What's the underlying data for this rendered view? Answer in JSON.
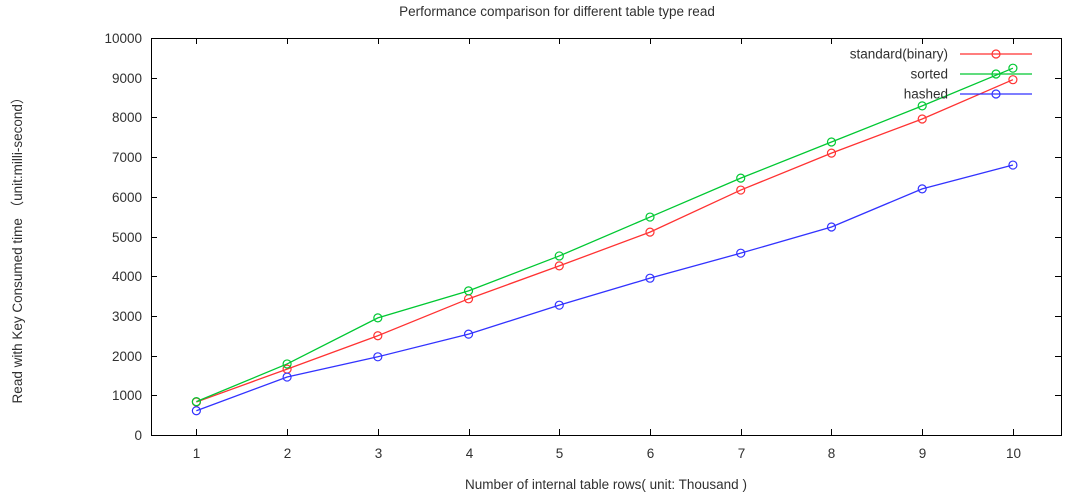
{
  "figure": {
    "background": "#ffffff",
    "text_color": "#303030",
    "axis_color": "#000000"
  },
  "chart_data": {
    "type": "line",
    "title": "Performance comparison for different table type read",
    "xlabel": "Number of internal table rows( unit: Thousand )",
    "ylabel": "Read with Key Consumed time （unit:milli-second）",
    "x": [
      1,
      2,
      3,
      4,
      5,
      6,
      7,
      8,
      9,
      10
    ],
    "xticks": [
      1,
      2,
      3,
      4,
      5,
      6,
      7,
      8,
      9,
      10
    ],
    "yticks": [
      0,
      1000,
      2000,
      3000,
      4000,
      5000,
      6000,
      7000,
      8000,
      9000,
      10000
    ],
    "xlim": [
      0.5,
      10.53
    ],
    "ylim": [
      0,
      10000
    ],
    "grid": false,
    "marker": "open-circle",
    "legend_position": "top-right-inside",
    "series": [
      {
        "name": "standard(binary)",
        "color": "#ff3232",
        "values": [
          830,
          1660,
          2500,
          3430,
          4260,
          5110,
          6170,
          7100,
          7960,
          8950
        ]
      },
      {
        "name": "sorted",
        "color": "#00c832",
        "values": [
          840,
          1790,
          2950,
          3630,
          4510,
          5490,
          6470,
          7380,
          8290,
          9240
        ]
      },
      {
        "name": "hashed",
        "color": "#3232ff",
        "values": [
          610,
          1460,
          1970,
          2540,
          3270,
          3950,
          4580,
          5240,
          6200,
          6800
        ]
      }
    ]
  }
}
